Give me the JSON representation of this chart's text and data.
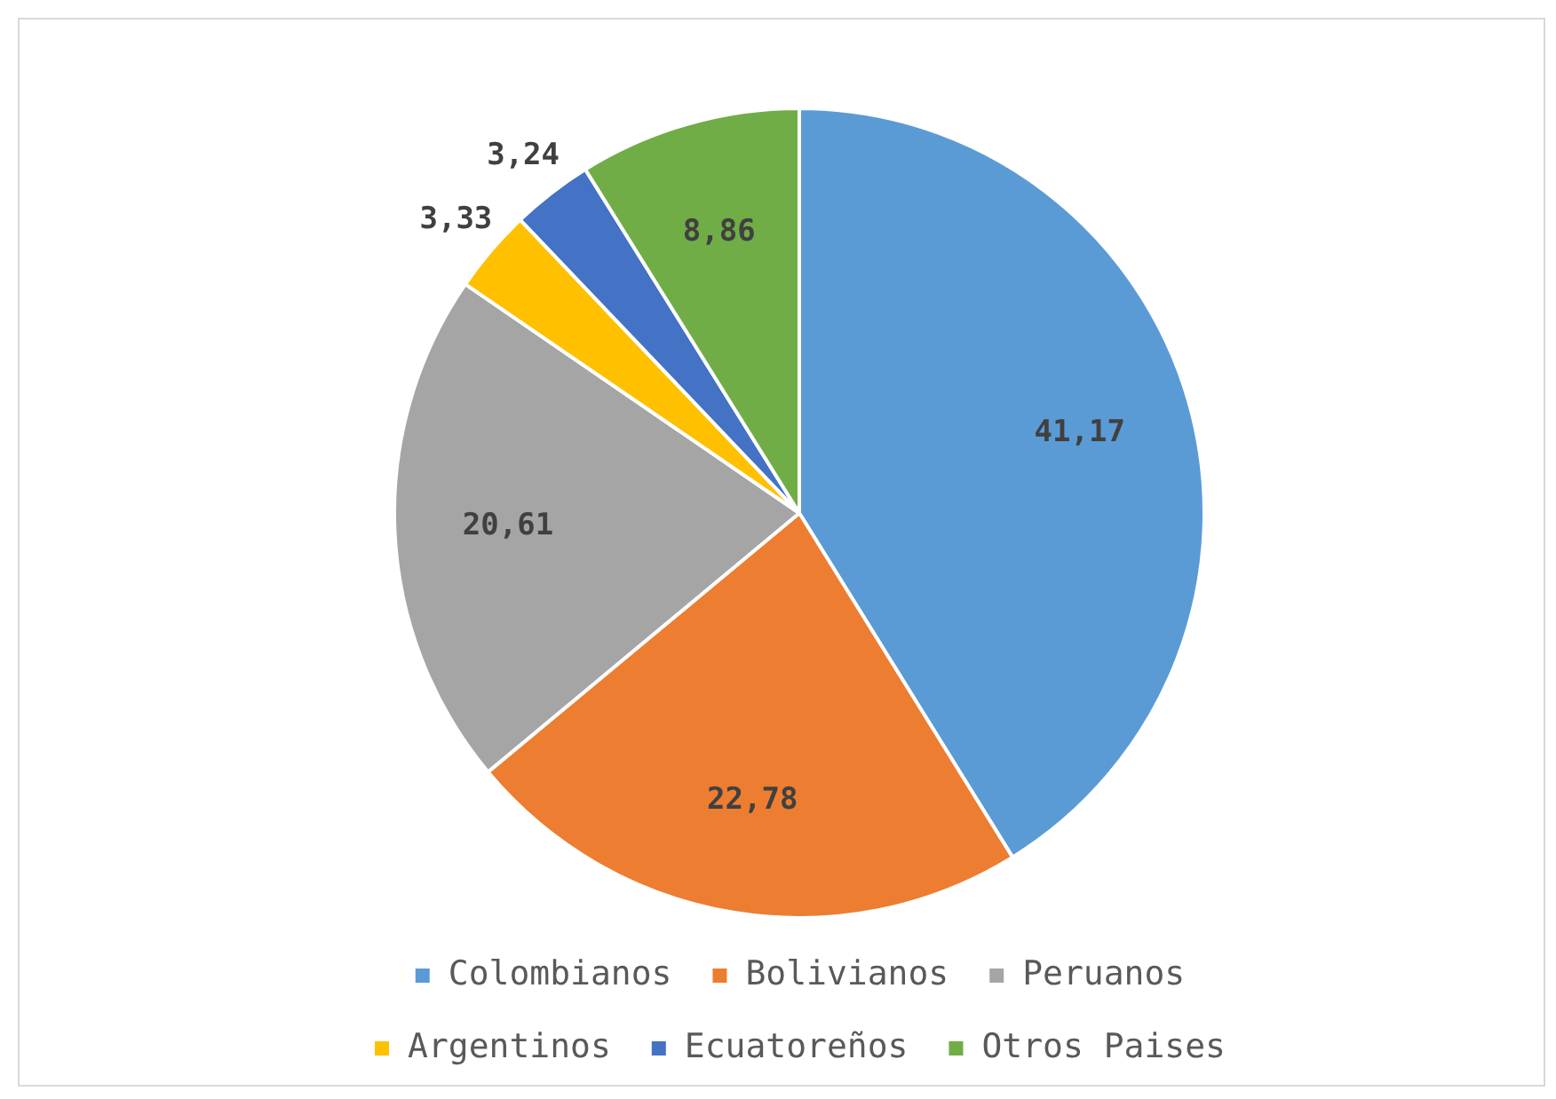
{
  "chart_data": {
    "type": "pie",
    "categories": [
      "Colombianos",
      "Bolivianos",
      "Peruanos",
      "Argentinos",
      "Ecuatoreños",
      "Otros Paises"
    ],
    "values": [
      41.17,
      22.78,
      20.61,
      3.33,
      3.24,
      8.86
    ],
    "colors": [
      "#5b9bd5",
      "#ed7d31",
      "#a5a5a5",
      "#ffc000",
      "#4472c4",
      "#70ad47"
    ],
    "value_labels": [
      "41,17",
      "22,78",
      "20,61",
      "3,33",
      "3,24",
      "8,86"
    ],
    "legend": "bottom"
  }
}
